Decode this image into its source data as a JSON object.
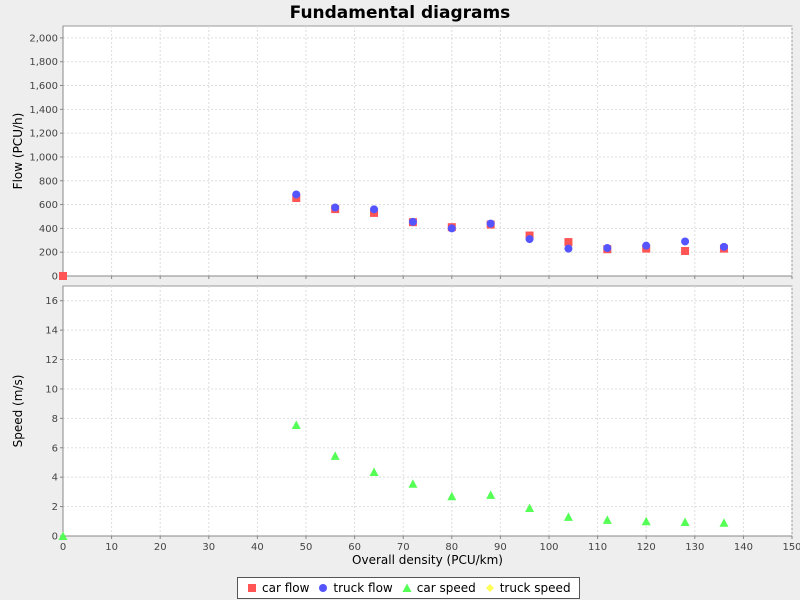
{
  "chart_data": {
    "type": "scatter",
    "title": "Fundamental diagrams",
    "xlabel": "Overall density (PCU/km)",
    "xlim": [
      0,
      150
    ],
    "xticks": [
      0,
      10,
      20,
      30,
      40,
      50,
      60,
      70,
      80,
      90,
      100,
      110,
      120,
      130,
      140,
      150
    ],
    "grid": true,
    "legend_position": "bottom",
    "subplots": [
      {
        "ylabel": "Flow (PCU/h)",
        "ylim": [
          0,
          2100
        ],
        "yticks": [
          0,
          200,
          400,
          600,
          800,
          1000,
          1200,
          1400,
          1600,
          1800,
          2000
        ],
        "ytick_labels": [
          "0",
          "200",
          "400",
          "600",
          "800",
          "1,000",
          "1,200",
          "1,400",
          "1,600",
          "1,800",
          "2,000"
        ],
        "series": [
          {
            "name": "car flow",
            "marker": "square",
            "color": "#ff5555",
            "x": [
              0,
              48,
              56,
              64,
              72,
              80,
              88,
              96,
              104,
              112,
              120,
              128,
              136
            ],
            "y": [
              0,
              655,
              562,
              530,
              452,
              410,
              432,
              340,
              285,
              225,
              230,
              210,
              230
            ]
          },
          {
            "name": "truck flow",
            "marker": "circle",
            "color": "#5555ff",
            "x": [
              48,
              56,
              64,
              72,
              80,
              88,
              96,
              104,
              112,
              120,
              128,
              136
            ],
            "y": [
              685,
              575,
              560,
              455,
              400,
              440,
              310,
              230,
              235,
              255,
              290,
              245
            ]
          }
        ]
      },
      {
        "ylabel": "Speed (m/s)",
        "ylim": [
          0,
          17
        ],
        "yticks": [
          0,
          2,
          4,
          6,
          8,
          10,
          12,
          14,
          16
        ],
        "ytick_labels": [
          "0",
          "2",
          "4",
          "6",
          "8",
          "10",
          "12",
          "14",
          "16"
        ],
        "series": [
          {
            "name": "car speed",
            "marker": "triangle",
            "color": "#55ff55",
            "x": [
              0,
              48,
              56,
              64,
              72,
              80,
              88,
              96,
              104,
              112,
              120,
              128,
              136
            ],
            "y": [
              0,
              7.55,
              5.45,
              4.35,
              3.55,
              2.7,
              2.8,
              1.9,
              1.3,
              1.1,
              1.0,
              0.95,
              0.9
            ]
          },
          {
            "name": "truck speed",
            "marker": "diamond",
            "color": "#ffff55",
            "x": [],
            "y": []
          }
        ]
      }
    ]
  }
}
